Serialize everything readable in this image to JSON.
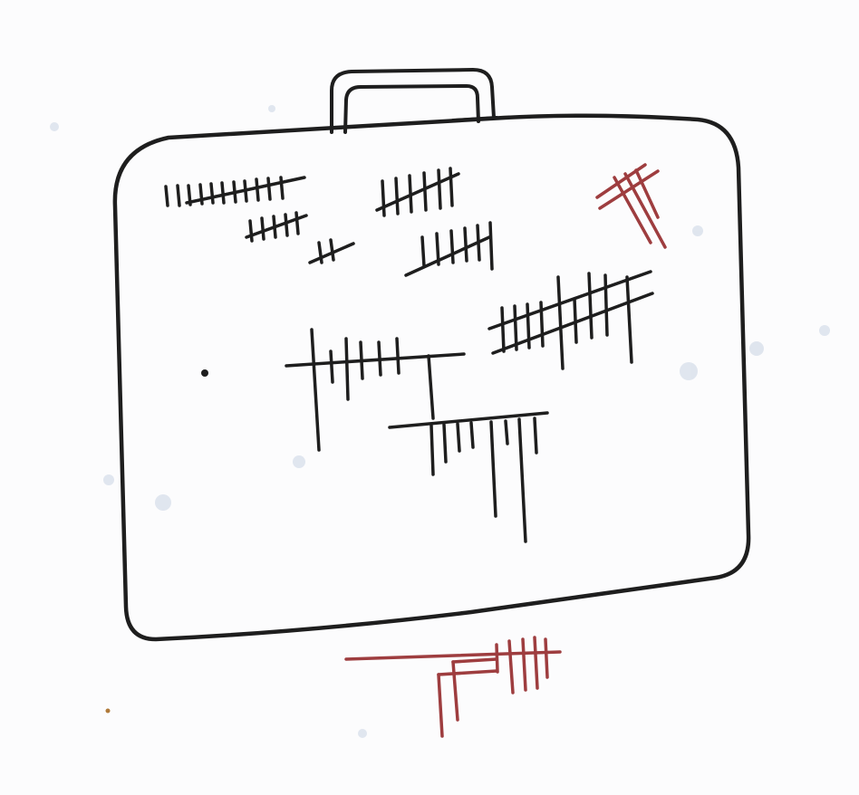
{
  "drawing": {
    "subject": "suitcase",
    "colors": {
      "paper": "#fcfcfd",
      "paper_speckle": "#c9d3e3",
      "ink_black": "#1e1e1e",
      "ink_red": "#9e3d3f"
    },
    "tally_groups": [
      {
        "name": "top-left-row-1",
        "color": "black"
      },
      {
        "name": "top-left-row-2",
        "color": "black"
      },
      {
        "name": "top-left-small-cross",
        "color": "black"
      },
      {
        "name": "top-middle-row-1",
        "color": "black"
      },
      {
        "name": "top-middle-row-2",
        "color": "black"
      },
      {
        "name": "right-crossed-grid",
        "color": "black"
      },
      {
        "name": "center-comb-upper",
        "color": "black"
      },
      {
        "name": "center-comb-lower",
        "color": "black"
      },
      {
        "name": "top-right-red-mark",
        "color": "red"
      },
      {
        "name": "bottom-red-mark",
        "color": "red"
      }
    ]
  }
}
